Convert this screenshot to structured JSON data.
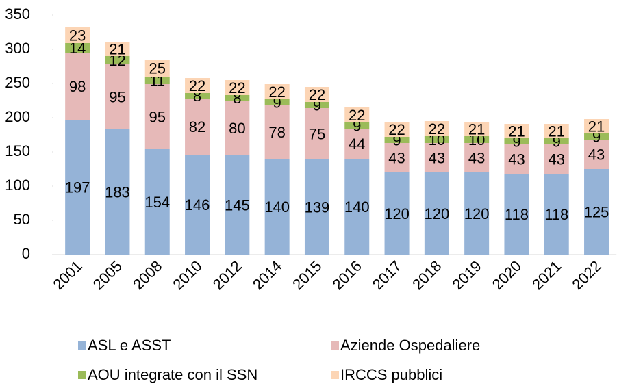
{
  "chart_data": {
    "type": "stacked_bar",
    "categories": [
      "2001",
      "2005",
      "2008",
      "2010",
      "2012",
      "2014",
      "2015",
      "2016",
      "2017",
      "2018",
      "2019",
      "2020",
      "2021",
      "2022"
    ],
    "series": [
      {
        "name": "ASL e ASST",
        "color": "#95b3d7",
        "values": [
          197,
          183,
          154,
          146,
          145,
          140,
          139,
          140,
          120,
          120,
          120,
          118,
          118,
          125
        ]
      },
      {
        "name": "Aziende Ospedaliere",
        "color": "#e6b9b8",
        "values": [
          98,
          95,
          95,
          82,
          80,
          78,
          75,
          44,
          43,
          43,
          43,
          43,
          43,
          43
        ]
      },
      {
        "name": "AOU integrate con il SSN",
        "color": "#9bbb59",
        "values": [
          14,
          12,
          11,
          8,
          8,
          9,
          9,
          9,
          9,
          10,
          10,
          9,
          9,
          9
        ]
      },
      {
        "name": "IRCCS pubblici",
        "color": "#fcd5b5",
        "values": [
          23,
          21,
          25,
          22,
          22,
          22,
          22,
          22,
          22,
          22,
          21,
          21,
          21,
          21
        ]
      }
    ],
    "ylim": [
      0,
      350
    ],
    "yticks": [
      0,
      50,
      100,
      150,
      200,
      250,
      300,
      350
    ],
    "legend": "bottom"
  }
}
